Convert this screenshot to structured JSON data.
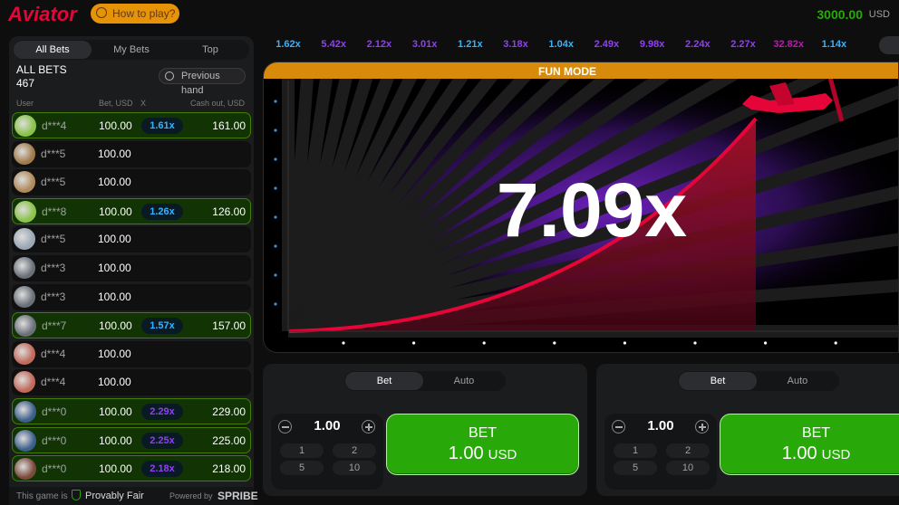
{
  "header": {
    "logo": "Aviator",
    "help": "How to play?",
    "balance": "3000.00",
    "currency": "USD"
  },
  "history": [
    "1.62x",
    "5.42x",
    "2.12x",
    "3.01x",
    "1.21x",
    "3.18x",
    "1.04x",
    "2.49x",
    "9.98x",
    "2.24x",
    "2.27x",
    "32.82x",
    "1.14x"
  ],
  "bets_panel": {
    "tabs": [
      "All Bets",
      "My Bets",
      "Top"
    ],
    "title": "ALL BETS",
    "count": "467",
    "previous": "Previous hand",
    "columns": [
      "User",
      "Bet, USD",
      "X",
      "Cash out, USD"
    ],
    "rows": [
      {
        "user": "d***4",
        "bet": "100.00",
        "multiplier": "1.61x",
        "cashout": "161.00"
      },
      {
        "user": "d***5",
        "bet": "100.00"
      },
      {
        "user": "d***5",
        "bet": "100.00"
      },
      {
        "user": "d***8",
        "bet": "100.00",
        "multiplier": "1.26x",
        "cashout": "126.00"
      },
      {
        "user": "d***5",
        "bet": "100.00"
      },
      {
        "user": "d***3",
        "bet": "100.00"
      },
      {
        "user": "d***3",
        "bet": "100.00"
      },
      {
        "user": "d***7",
        "bet": "100.00",
        "multiplier": "1.57x",
        "cashout": "157.00"
      },
      {
        "user": "d***4",
        "bet": "100.00"
      },
      {
        "user": "d***4",
        "bet": "100.00"
      },
      {
        "user": "d***0",
        "bet": "100.00",
        "multiplier": "2.29x",
        "cashout": "229.00"
      },
      {
        "user": "d***0",
        "bet": "100.00",
        "multiplier": "2.25x",
        "cashout": "225.00"
      },
      {
        "user": "d***0",
        "bet": "100.00",
        "multiplier": "2.18x",
        "cashout": "218.00"
      }
    ],
    "footer": {
      "prefix": "This game is",
      "fair": "Provably Fair",
      "powered": "Powered by",
      "brand": "SPRIBE"
    }
  },
  "game": {
    "mode": "FUN MODE",
    "multiplier": "7.09x"
  },
  "bet_controls": [
    {
      "tabs": [
        "Bet",
        "Auto"
      ],
      "amount": "1.00",
      "quick": [
        "1",
        "2",
        "5",
        "10"
      ],
      "button": "BET",
      "button_amount": "1.00",
      "button_currency": "USD"
    },
    {
      "tabs": [
        "Bet",
        "Auto"
      ],
      "amount": "1.00",
      "quick": [
        "1",
        "2",
        "5",
        "10"
      ],
      "button": "BET",
      "button_amount": "1.00",
      "button_currency": "USD"
    }
  ]
}
